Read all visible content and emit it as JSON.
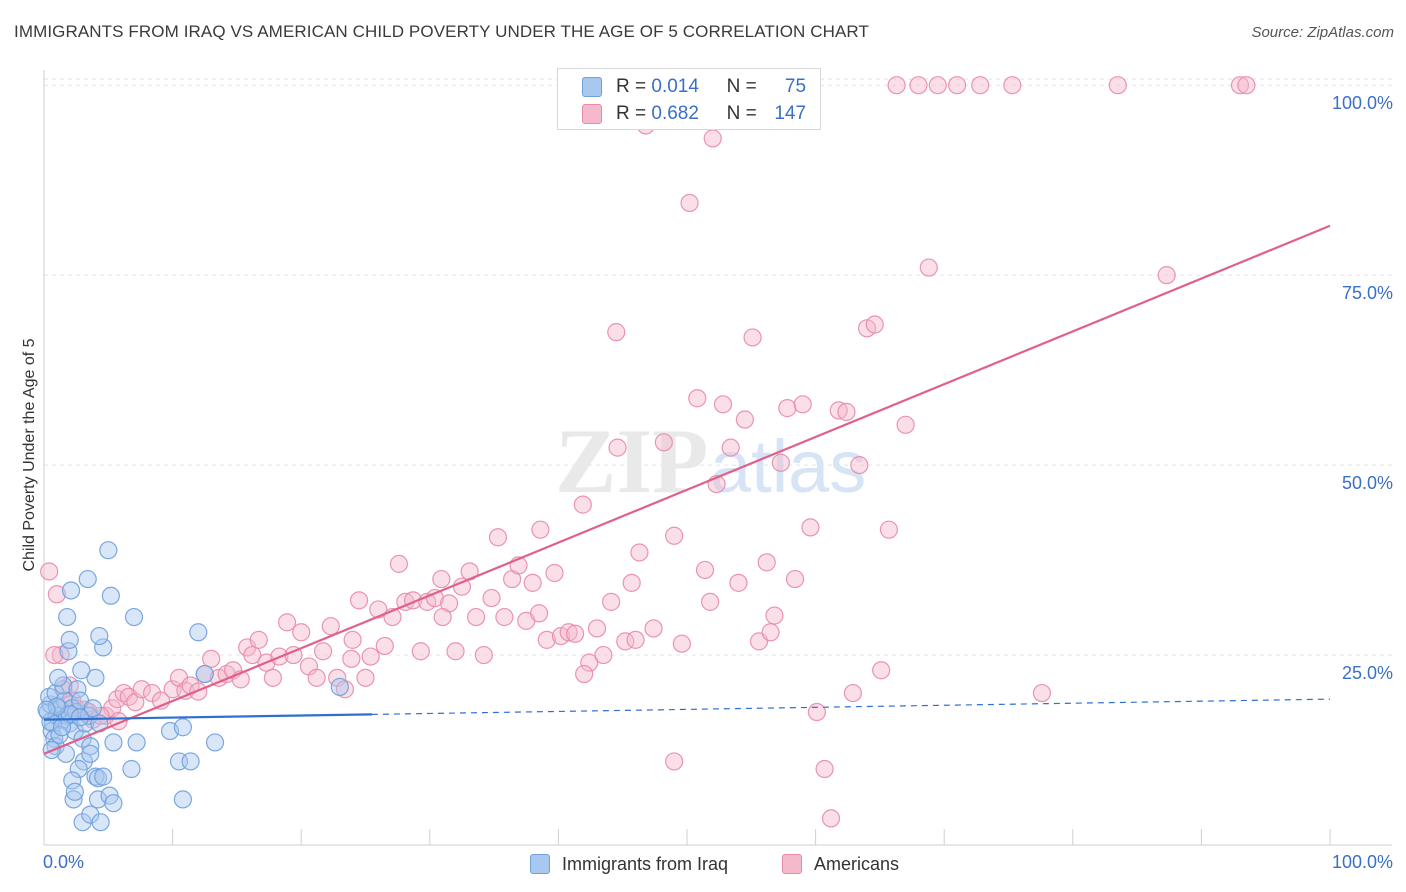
{
  "header": {
    "title": "IMMIGRANTS FROM IRAQ VS AMERICAN CHILD POVERTY UNDER THE AGE OF 5 CORRELATION CHART",
    "source": "Source: ZipAtlas.com"
  },
  "watermark": {
    "zip": "ZIP",
    "atlas": "atlas"
  },
  "legend_stats": {
    "rows": [
      {
        "r_label": "R =",
        "r_value": "0.014",
        "n_label": "N =",
        "n_value": "75",
        "color": "#a9c8ef",
        "border": "#6f9fdc"
      },
      {
        "r_label": "R =",
        "r_value": "0.682",
        "n_label": "N =",
        "n_value": "147",
        "color": "#f5b9cc",
        "border": "#e88aa8"
      }
    ]
  },
  "bottom_legend": {
    "items": [
      {
        "label": "Immigrants from Iraq",
        "color": "#a9c8ef",
        "border": "#6f9fdc"
      },
      {
        "label": "Americans",
        "color": "#f5b9cc",
        "border": "#e88aa8"
      }
    ]
  },
  "chart_data": {
    "type": "scatter",
    "title": "IMMIGRANTS FROM IRAQ VS AMERICAN CHILD POVERTY UNDER THE AGE OF 5 CORRELATION CHART",
    "xlabel": "",
    "ylabel": "Child Poverty Under the Age of 5",
    "xlim": [
      0,
      100
    ],
    "ylim": [
      0,
      102
    ],
    "x_tick_labels": {
      "left": "0.0%",
      "right": "100.0%"
    },
    "y_ticks": [
      {
        "value": 25,
        "label": "25.0%"
      },
      {
        "value": 50,
        "label": "50.0%"
      },
      {
        "value": 75,
        "label": "75.0%"
      },
      {
        "value": 100,
        "label": "100.0%"
      }
    ],
    "grid": true,
    "series": [
      {
        "name": "Immigrants from Iraq",
        "color": "#6f9fdc",
        "fill": "#a9c8ef",
        "trend": {
          "x0": 0,
          "y0": 16.5,
          "x1": 100,
          "y1": 19.2,
          "solid_until": 25.5,
          "color": "#2f6fd0"
        },
        "points": [
          [
            0.3,
            17.5
          ],
          [
            0.5,
            18.5
          ],
          [
            0.7,
            16
          ],
          [
            0.4,
            19.5
          ],
          [
            0.9,
            20
          ],
          [
            0.6,
            15
          ],
          [
            1.0,
            17
          ],
          [
            1.2,
            18
          ],
          [
            1.4,
            16.5
          ],
          [
            0.8,
            14
          ],
          [
            1.6,
            19
          ],
          [
            1.8,
            17
          ],
          [
            2.0,
            16
          ],
          [
            1.5,
            21
          ],
          [
            2.2,
            18
          ],
          [
            2.5,
            17.5
          ],
          [
            1.1,
            22
          ],
          [
            0.9,
            13
          ],
          [
            1.7,
            12
          ],
          [
            2.4,
            15
          ],
          [
            2.6,
            20.5
          ],
          [
            3.0,
            14
          ],
          [
            3.2,
            16
          ],
          [
            2.8,
            19
          ],
          [
            3.5,
            17
          ],
          [
            3.8,
            18
          ],
          [
            4.0,
            22
          ],
          [
            4.3,
            16
          ],
          [
            3.6,
            13
          ],
          [
            1.9,
            25.5
          ],
          [
            2.0,
            27
          ],
          [
            1.8,
            30
          ],
          [
            2.1,
            33.5
          ],
          [
            3.4,
            35
          ],
          [
            2.9,
            23
          ],
          [
            3.1,
            11
          ],
          [
            2.7,
            10
          ],
          [
            2.2,
            8.5
          ],
          [
            2.3,
            6
          ],
          [
            2.4,
            7
          ],
          [
            3.0,
            3
          ],
          [
            3.6,
            4
          ],
          [
            4.0,
            9
          ],
          [
            4.2,
            6
          ],
          [
            4.4,
            3
          ],
          [
            5.1,
            6.5
          ],
          [
            5.4,
            5.5
          ],
          [
            4.6,
            26
          ],
          [
            4.3,
            27.5
          ],
          [
            5.0,
            38.8
          ],
          [
            5.2,
            32.8
          ],
          [
            7.0,
            30
          ],
          [
            5.4,
            13.5
          ],
          [
            6.8,
            10
          ],
          [
            7.2,
            13.5
          ],
          [
            9.8,
            15
          ],
          [
            10.5,
            11
          ],
          [
            10.8,
            15.5
          ],
          [
            11.4,
            11
          ],
          [
            12.5,
            22.5
          ],
          [
            12.0,
            28
          ],
          [
            13.3,
            13.5
          ],
          [
            10.8,
            6
          ],
          [
            4.2,
            8.8
          ],
          [
            3.6,
            12
          ],
          [
            0.6,
            12.5
          ],
          [
            1.2,
            14.5
          ],
          [
            2.0,
            17.2
          ],
          [
            2.8,
            16.8
          ],
          [
            0.5,
            16.2
          ],
          [
            1.0,
            18.2
          ],
          [
            1.4,
            15.5
          ],
          [
            0.2,
            17.8
          ],
          [
            23.0,
            20.8
          ],
          [
            4.6,
            9
          ]
        ]
      },
      {
        "name": "Americans",
        "color": "#e88aa8",
        "fill": "#f5b9cc",
        "trend": {
          "x0": 0,
          "y0": 12,
          "x1": 100,
          "y1": 81.5,
          "color": "#e0608a"
        },
        "points": [
          [
            0.4,
            36
          ],
          [
            1,
            33
          ],
          [
            1.3,
            25
          ],
          [
            2.0,
            21
          ],
          [
            2.2,
            19
          ],
          [
            2.5,
            18
          ],
          [
            3.5,
            17.5
          ],
          [
            3.8,
            16.5
          ],
          [
            4.8,
            17
          ],
          [
            5.3,
            18
          ],
          [
            5.7,
            19.2
          ],
          [
            6.2,
            20
          ],
          [
            6.6,
            19.5
          ],
          [
            7.1,
            18.8
          ],
          [
            7.6,
            20.5
          ],
          [
            8.4,
            20
          ],
          [
            9.1,
            19
          ],
          [
            10.0,
            20.5
          ],
          [
            10.5,
            22
          ],
          [
            11.0,
            20.3
          ],
          [
            11.4,
            21
          ],
          [
            12.0,
            20.2
          ],
          [
            12.5,
            22.5
          ],
          [
            13.0,
            24.5
          ],
          [
            13.6,
            22
          ],
          [
            14.2,
            22.5
          ],
          [
            14.7,
            23
          ],
          [
            15.3,
            21.8
          ],
          [
            15.8,
            26
          ],
          [
            16.2,
            25
          ],
          [
            16.7,
            27
          ],
          [
            17.3,
            24
          ],
          [
            17.8,
            22
          ],
          [
            18.3,
            24.8
          ],
          [
            18.9,
            29.3
          ],
          [
            19.4,
            25
          ],
          [
            20.0,
            28
          ],
          [
            20.6,
            23.5
          ],
          [
            21.2,
            22
          ],
          [
            21.7,
            25.5
          ],
          [
            22.3,
            28.8
          ],
          [
            22.8,
            22
          ],
          [
            23.4,
            20.5
          ],
          [
            23.9,
            24.5
          ],
          [
            24.5,
            32.2
          ],
          [
            25.0,
            22
          ],
          [
            25.4,
            24.8
          ],
          [
            26.0,
            31
          ],
          [
            26.5,
            26.2
          ],
          [
            27.1,
            30
          ],
          [
            27.6,
            37
          ],
          [
            28.1,
            32
          ],
          [
            28.7,
            32.2
          ],
          [
            29.3,
            25.5
          ],
          [
            29.8,
            32
          ],
          [
            30.4,
            32.5
          ],
          [
            30.9,
            35
          ],
          [
            31.5,
            31.8
          ],
          [
            32.0,
            25.5
          ],
          [
            32.5,
            34
          ],
          [
            33.1,
            36
          ],
          [
            33.6,
            30
          ],
          [
            34.2,
            25
          ],
          [
            34.8,
            32.5
          ],
          [
            35.3,
            40.5
          ],
          [
            35.8,
            30
          ],
          [
            36.4,
            35
          ],
          [
            36.9,
            36.8
          ],
          [
            37.5,
            29.5
          ],
          [
            38.0,
            34.5
          ],
          [
            38.6,
            41.5
          ],
          [
            39.1,
            27
          ],
          [
            39.7,
            35.8
          ],
          [
            40.2,
            27.5
          ],
          [
            40.8,
            28
          ],
          [
            41.3,
            27.8
          ],
          [
            41.9,
            44.8
          ],
          [
            42.4,
            24
          ],
          [
            43.0,
            28.5
          ],
          [
            43.5,
            25
          ],
          [
            44.1,
            32
          ],
          [
            44.6,
            52.3
          ],
          [
            45.2,
            26.8
          ],
          [
            45.7,
            34.5
          ],
          [
            46.3,
            38.5
          ],
          [
            46.8,
            94.7
          ],
          [
            47.4,
            28.5
          ],
          [
            48.2,
            53
          ],
          [
            49.0,
            40.7
          ],
          [
            49.6,
            26.5
          ],
          [
            50.2,
            84.5
          ],
          [
            50.8,
            58.8
          ],
          [
            51.4,
            36.2
          ],
          [
            51.8,
            32
          ],
          [
            52.3,
            47.5
          ],
          [
            52.8,
            58
          ],
          [
            53.4,
            52.3
          ],
          [
            54.0,
            34.5
          ],
          [
            54.5,
            56
          ],
          [
            55.1,
            66.8
          ],
          [
            55.6,
            26.8
          ],
          [
            56.2,
            37.2
          ],
          [
            56.8,
            30.2
          ],
          [
            57.3,
            50.3
          ],
          [
            57.8,
            57.5
          ],
          [
            58.4,
            35
          ],
          [
            59.0,
            58
          ],
          [
            59.6,
            41.8
          ],
          [
            60.1,
            17.5
          ],
          [
            60.7,
            10
          ],
          [
            61.2,
            3.5
          ],
          [
            61.8,
            57.2
          ],
          [
            62.4,
            57
          ],
          [
            62.9,
            20
          ],
          [
            63.4,
            50
          ],
          [
            64.0,
            68
          ],
          [
            64.6,
            68.5
          ],
          [
            65.1,
            23
          ],
          [
            65.7,
            41.5
          ],
          [
            66.3,
            100
          ],
          [
            67.0,
            55.3
          ],
          [
            68.0,
            100
          ],
          [
            68.8,
            76
          ],
          [
            69.5,
            100
          ],
          [
            71.0,
            100
          ],
          [
            72.8,
            100
          ],
          [
            75.3,
            100
          ],
          [
            77.6,
            20
          ],
          [
            83.5,
            100
          ],
          [
            87.3,
            75
          ],
          [
            93.0,
            100
          ],
          [
            93.5,
            100
          ],
          [
            44.5,
            67.5
          ],
          [
            46.0,
            27
          ],
          [
            52.0,
            93
          ],
          [
            56.5,
            28
          ],
          [
            38.5,
            30.5
          ],
          [
            31.0,
            30
          ],
          [
            24.0,
            27
          ],
          [
            5.8,
            16.3
          ],
          [
            3.2,
            17.8
          ],
          [
            2.0,
            18.5
          ],
          [
            4.4,
            17
          ],
          [
            0.8,
            25
          ],
          [
            1.5,
            20.5
          ],
          [
            42.0,
            22.5
          ],
          [
            49.0,
            11
          ]
        ]
      }
    ]
  }
}
